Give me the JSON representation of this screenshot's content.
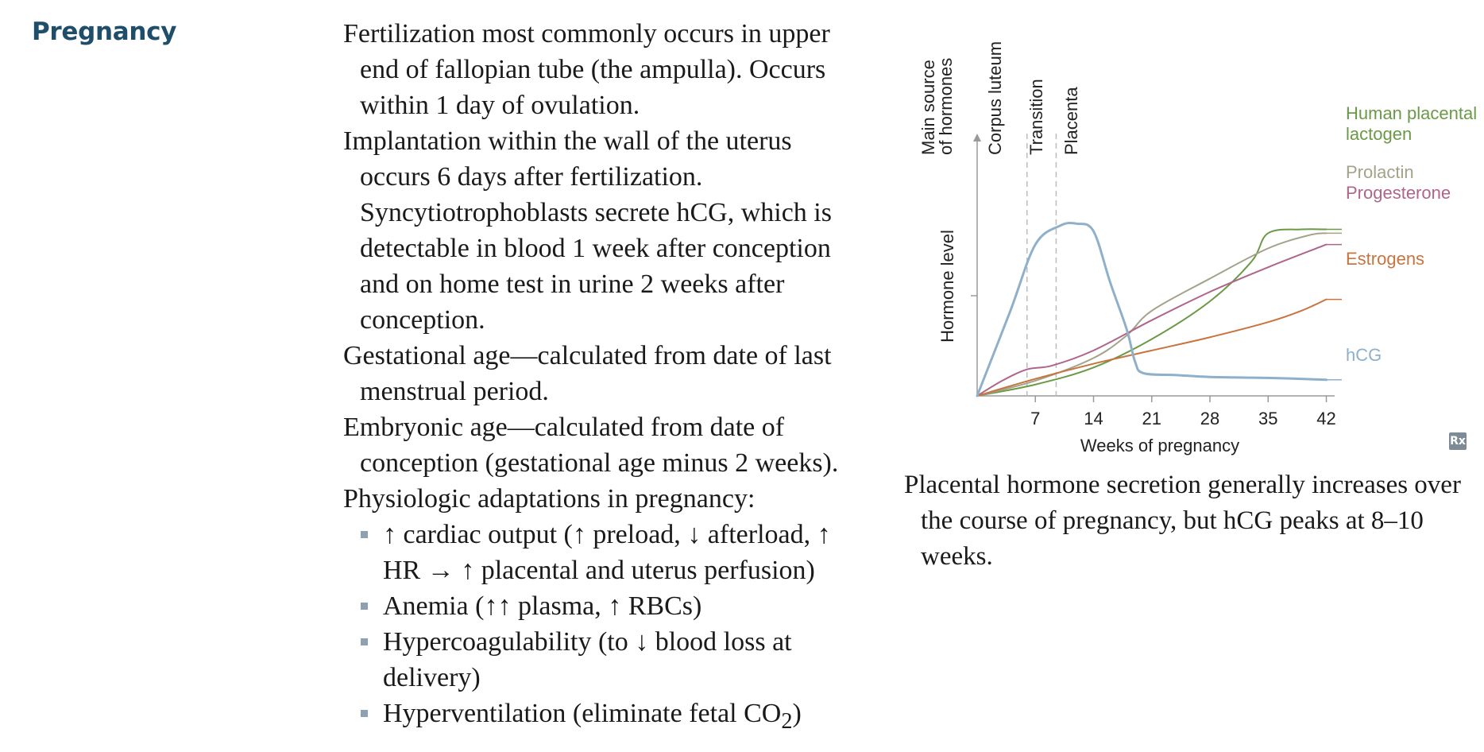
{
  "section": {
    "heading": "Pregnancy"
  },
  "paragraphs": [
    "Fertilization most commonly occurs in upper end of fallopian tube (the ampulla). Occurs within 1 day of ovulation.",
    "Implantation within the wall of the uterus occurs 6 days after fertilization. Syncytiotrophoblasts secrete hCG, which is detectable in blood 1 week after conception and on home test in urine 2 weeks after conception.",
    "Gestational age—calculated from date of last menstrual period.",
    "Embryonic age—calculated from date of conception (gestational age minus 2 weeks).",
    "Physiologic adaptations in pregnancy:"
  ],
  "adaptations": {
    "cardiac": "↑ cardiac output (↑ preload, ↓ afterload, ↑ HR → ↑ placental and uterus perfusion)",
    "anemia": "Anemia (↑↑ plasma, ↑ RBCs)",
    "hypercoag": "Hypercoagulability (to ↓ blood loss at delivery)",
    "hypervent_prefix": "Hyperventilation (eliminate fetal CO",
    "hypervent_sub": "2",
    "hypervent_suffix": ")"
  },
  "figure": {
    "rx_label": "Rx",
    "caption": "Placental hormone secretion generally increases over the course of pregnancy, but hCG peaks at 8–10 weeks."
  },
  "chart_data": {
    "type": "line",
    "xlabel": "Weeks of pregnancy",
    "ylabel": "Hormone level",
    "ylim": [
      0,
      100
    ],
    "x_ticks": [
      7,
      14,
      21,
      28,
      35,
      42
    ],
    "xlim": [
      0,
      43
    ],
    "grid": false,
    "phase_header": "Main source of hormones",
    "phases": [
      {
        "label": "Corpus luteum",
        "from": 0,
        "to": 6
      },
      {
        "label": "Transition",
        "from": 6,
        "to": 9.5
      },
      {
        "label": "Placenta",
        "from": 9.5,
        "to": 43
      }
    ],
    "series": [
      {
        "name": "Human placental lactogen",
        "color": "#6a9a47",
        "points": [
          [
            0,
            0
          ],
          [
            7,
            6
          ],
          [
            14,
            15
          ],
          [
            21,
            30
          ],
          [
            28,
            50
          ],
          [
            33,
            71
          ],
          [
            35,
            86
          ],
          [
            39,
            88
          ],
          [
            42,
            88
          ]
        ]
      },
      {
        "name": "Prolactin",
        "color": "#a3a38a",
        "points": [
          [
            0,
            0
          ],
          [
            7,
            8
          ],
          [
            14,
            20
          ],
          [
            18,
            32
          ],
          [
            21,
            45
          ],
          [
            28,
            62
          ],
          [
            35,
            78
          ],
          [
            40,
            85
          ],
          [
            42,
            86
          ]
        ]
      },
      {
        "name": "Progesterone",
        "color": "#b0648a",
        "points": [
          [
            0,
            0
          ],
          [
            3,
            8
          ],
          [
            6,
            14
          ],
          [
            9,
            16
          ],
          [
            14,
            24
          ],
          [
            21,
            40
          ],
          [
            28,
            55
          ],
          [
            35,
            68
          ],
          [
            42,
            80
          ]
        ]
      },
      {
        "name": "Estrogens",
        "color": "#c8743e",
        "points": [
          [
            0,
            0
          ],
          [
            7,
            9
          ],
          [
            14,
            17
          ],
          [
            21,
            24
          ],
          [
            28,
            31
          ],
          [
            35,
            39
          ],
          [
            39,
            45
          ],
          [
            42,
            51
          ]
        ]
      },
      {
        "name": "hCG",
        "color": "#8eb0cb",
        "points": [
          [
            0,
            0
          ],
          [
            4,
            45
          ],
          [
            7,
            80
          ],
          [
            10,
            90
          ],
          [
            12,
            91
          ],
          [
            14,
            87
          ],
          [
            16,
            60
          ],
          [
            18,
            35
          ],
          [
            19,
            18
          ],
          [
            20,
            12
          ],
          [
            24,
            11
          ],
          [
            28,
            10
          ],
          [
            35,
            9.5
          ],
          [
            42,
            8.5
          ]
        ]
      }
    ]
  }
}
